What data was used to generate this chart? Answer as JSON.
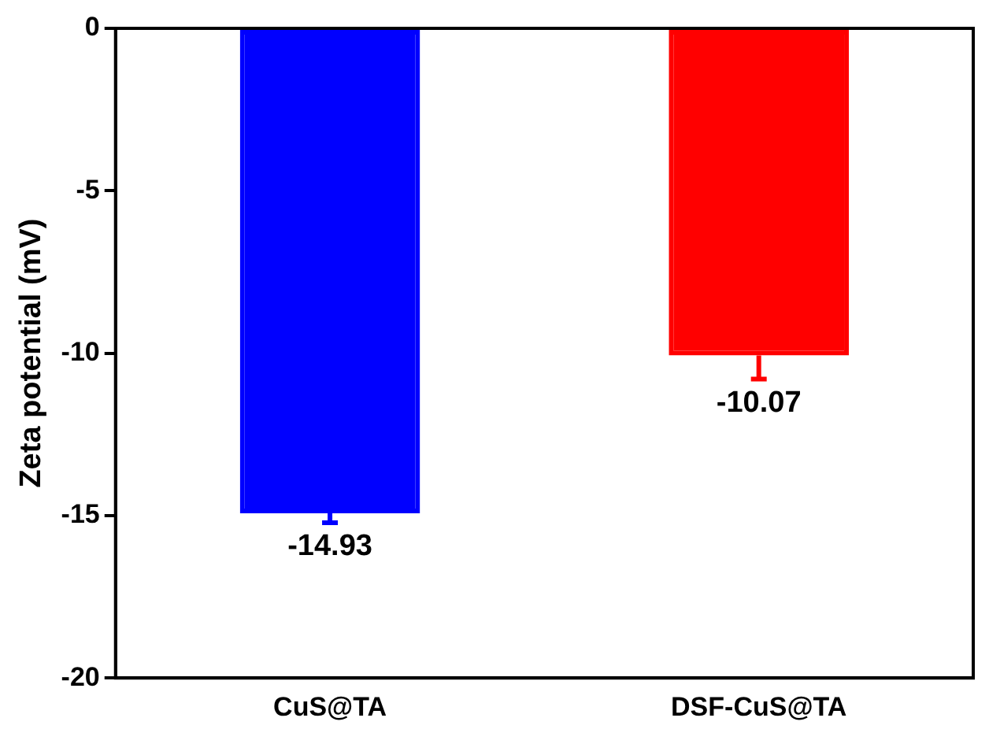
{
  "chart_data": {
    "type": "bar",
    "ylabel": "Zeta potential (mV)",
    "categories": [
      "CuS@TA",
      "DSF-CuS@TA"
    ],
    "values": [
      -14.93,
      -10.07
    ],
    "colors": [
      "#0000ff",
      "#ff0000"
    ],
    "errors": [
      [
        -15.22,
        -14.93
      ],
      [
        -10.8,
        -10.07
      ]
    ],
    "data_labels": true,
    "ylim": [
      -20,
      0
    ],
    "yticks": [
      -20,
      -15,
      -10,
      -5,
      0
    ],
    "grid": false,
    "legend": false
  }
}
